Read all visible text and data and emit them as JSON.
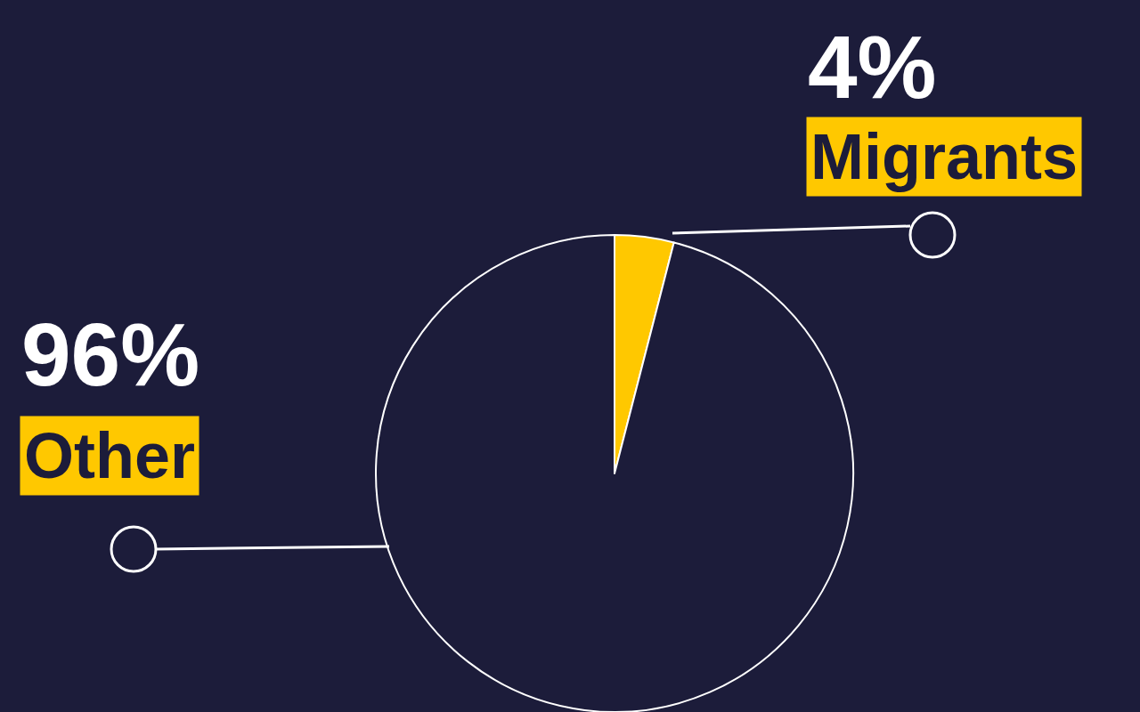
{
  "chart_data": {
    "type": "pie",
    "categories": [
      "Migrants",
      "Other"
    ],
    "values": [
      4,
      96
    ],
    "colors": [
      "#ffc800",
      "#1c1c3a"
    ],
    "value_labels": [
      "4%",
      "96%"
    ],
    "legend": false
  }
}
